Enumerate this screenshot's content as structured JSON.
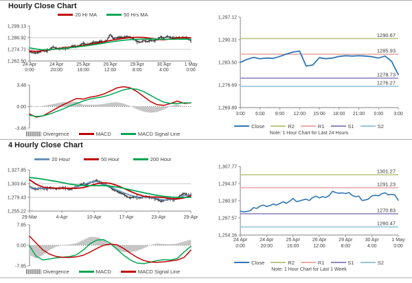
{
  "notes": {
    "hourly": "Note: 1 Hour Chart for Last 24 Hours",
    "weekly": "Note: 1 Hour Chart for Last 1 Week"
  },
  "chart_data": [
    {
      "id": "hourly-close",
      "type": "line",
      "title": "Hourly Close Chart",
      "ylim": [
        1262.5,
        1299.13
      ],
      "ylabel": "",
      "xlabel": "",
      "legend_position": "top",
      "y_ticks": [
        {
          "v": 1299.13,
          "label": "1,299.13"
        },
        {
          "v": 1286.92,
          "label": "1,286.92",
          "grid": true
        },
        {
          "v": 1274.71,
          "label": "1,274.71",
          "grid": true
        },
        {
          "v": 1262.5,
          "label": "1,262.50"
        }
      ],
      "x_ticks": [
        [
          "24 Apr",
          "0:00"
        ],
        [
          "24 Apr",
          "20:00"
        ],
        [
          "25 Apr",
          "16:00"
        ],
        [
          "26 Apr",
          "12:00"
        ],
        [
          "29 Apr",
          "8:00"
        ],
        [
          "30 Apr",
          "4:00"
        ],
        [
          "1 May",
          "0:00"
        ]
      ],
      "series": [
        {
          "name": "Close",
          "style": "hairline",
          "color": "#1a1a1a",
          "values": [
            1272.5,
            1271.2,
            1270.9,
            1272.0,
            1273.5,
            1272.8,
            1274.5,
            1277.3,
            1275.8,
            1275.2,
            1276.0,
            1275.5,
            1276.8,
            1278.5,
            1277.5,
            1279.0,
            1281.2,
            1279.5,
            1280.5,
            1282.5,
            1281.8,
            1283.0,
            1282.5,
            1284.0,
            1290.3,
            1286.0,
            1286.8,
            1287.5,
            1287.0,
            1288.2,
            1287.3,
            1285.5,
            1283.0,
            1282.2,
            1283.8,
            1282.8,
            1284.0,
            1283.5,
            1285.0,
            1287.8,
            1286.5,
            1288.3,
            1287.0,
            1286.5,
            1287.2,
            1286.8,
            1287.0,
            1286.5,
            1283.3
          ]
        },
        {
          "name": "20 Hr MA",
          "style": "line",
          "color": "#c00000",
          "width": 1.7,
          "values": [
            1273.0,
            1272.6,
            1273.2,
            1274.2,
            1275.3,
            1276.2,
            1277.0,
            1277.8,
            1278.8,
            1280.0,
            1281.2,
            1282.6,
            1284.0,
            1285.2,
            1286.2,
            1287.0,
            1287.4,
            1287.2,
            1286.2,
            1285.0,
            1284.8,
            1285.6,
            1286.6,
            1287.0,
            1286.8
          ]
        },
        {
          "name": "50 Hrs MA",
          "style": "line",
          "color": "#00a651",
          "width": 1.7,
          "values": [
            1276.3,
            1275.0,
            1274.2,
            1274.4,
            1274.9,
            1275.6,
            1276.4,
            1277.2,
            1278.0,
            1279.0,
            1280.0,
            1281.2,
            1282.4,
            1283.4,
            1284.2,
            1284.9,
            1285.3,
            1285.5,
            1285.5,
            1285.4,
            1285.3,
            1285.3,
            1285.4,
            1285.5,
            1285.3
          ]
        }
      ]
    },
    {
      "id": "hourly-macd",
      "type": "line",
      "ylim": [
        -3.48,
        3.48
      ],
      "legend_position": "bottom",
      "y_ticks": [
        {
          "v": 3.48,
          "label": "3.48"
        },
        {
          "v": 0,
          "label": "0.00",
          "zero": true
        },
        {
          "v": -3.48,
          "label": "-3.48"
        }
      ],
      "series": [
        {
          "name": "Divergence",
          "style": "bars",
          "color": "#8c8c8c",
          "values": [
            0.2,
            -0.1,
            0.1,
            0.3,
            0.5,
            0.7,
            0.7,
            0.8,
            0.3,
            0.3,
            0.3,
            0.4,
            0.6,
            0.7,
            0.5,
            0.1,
            -0.4,
            -0.8,
            -1.0,
            -0.9,
            -0.5,
            0.0,
            0.4,
            -0.1,
            0.1
          ]
        },
        {
          "name": "MACD",
          "style": "line",
          "color": "#c00000",
          "width": 1.5,
          "values": [
            -1.2,
            -1.7,
            -1.5,
            -0.9,
            -0.3,
            0.3,
            0.8,
            1.3,
            1.2,
            1.5,
            1.7,
            2.0,
            2.5,
            3.0,
            3.2,
            3.0,
            2.4,
            1.6,
            0.8,
            0.3,
            0.2,
            0.5,
            0.9,
            0.5,
            0.6
          ]
        },
        {
          "name": "MACD Signal Line",
          "style": "line",
          "color": "#00a651",
          "width": 1.5,
          "values": [
            -1.4,
            -1.6,
            -1.5,
            -1.2,
            -0.8,
            -0.4,
            0.1,
            0.5,
            0.9,
            1.2,
            1.4,
            1.6,
            1.9,
            2.3,
            2.7,
            2.9,
            2.8,
            2.4,
            1.8,
            1.2,
            0.7,
            0.5,
            0.5,
            0.6,
            0.6
          ]
        }
      ]
    },
    {
      "id": "one-hour-24h",
      "type": "line",
      "ylim": [
        1269.89,
        1297.12
      ],
      "legend_position": "bottom",
      "note": "Note: 1 Hour Chart for Last 24 Hours",
      "y_ticks": [
        {
          "v": 1297.12,
          "label": "1,297.12"
        },
        {
          "v": 1290.31,
          "label": "1,290.31"
        },
        {
          "v": 1283.5,
          "label": "1,283.50"
        },
        {
          "v": 1276.69,
          "label": "1,276.69"
        },
        {
          "v": 1269.89,
          "label": "1,269.89"
        }
      ],
      "x_ticks": [
        "3:00",
        "6:00",
        "9:00",
        "12:00",
        "15:00",
        "18:00",
        "21:00",
        "0:00",
        "3:00"
      ],
      "hlines": [
        {
          "name": "R2",
          "v": 1290.67,
          "label": "1290.67",
          "color": "#b9c783"
        },
        {
          "name": "R1",
          "v": 1285.93,
          "label": "1285.93",
          "color": "#e8aba5"
        },
        {
          "name": "S1",
          "v": 1278.73,
          "label": "1278.73",
          "color": "#9185bf"
        },
        {
          "name": "S2",
          "v": 1276.27,
          "label": "1276.27",
          "color": "#97c6de"
        }
      ],
      "series": [
        {
          "name": "Close",
          "style": "line",
          "color": "#2e74b5",
          "width": 1.8,
          "values": [
            1283.5,
            1284.4,
            1285.0,
            1284.6,
            1284.8,
            1284.7,
            1285.3,
            1286.0,
            1286.6,
            1286.9,
            1282.4,
            1282.7,
            1284.9,
            1284.6,
            1284.8,
            1285.3,
            1285.5,
            1285.4,
            1285.5,
            1285.4,
            1285.2,
            1284.8,
            1285.4,
            1283.8,
            1279.8
          ]
        }
      ]
    },
    {
      "id": "four-hourly-close",
      "type": "line",
      "title": "4 Hourly Close Chart",
      "ylim": [
        1255.22,
        1327.85
      ],
      "legend_position": "top",
      "y_ticks": [
        {
          "v": 1327.85,
          "label": "1,327.85"
        },
        {
          "v": 1303.64,
          "label": "1,303.64",
          "grid": true
        },
        {
          "v": 1279.43,
          "label": "1,279.43",
          "grid": true
        },
        {
          "v": 1255.22,
          "label": "1,255.22"
        }
      ],
      "x_ticks": [
        "29-Mar",
        "4-Apr",
        "10-Apr",
        "17-Apr",
        "23-Apr",
        "29-Apr"
      ],
      "series": [
        {
          "name": "Close",
          "style": "hairline",
          "color": "#1a1a1a",
          "values": [
            1298.5,
            1295.2,
            1293.8,
            1295.5,
            1294.8,
            1294.2,
            1296.2,
            1295.6,
            1294.2,
            1295.8,
            1296.4,
            1295.0,
            1293.2,
            1295.6,
            1298.0,
            1301.5,
            1303.2,
            1302.0,
            1305.5,
            1307.2,
            1309.3,
            1305.8,
            1302.4,
            1301.0,
            1297.4,
            1292.6,
            1290.2,
            1287.4,
            1285.2,
            1280.6,
            1278.4,
            1280.2,
            1279.6,
            1278.2,
            1280.4,
            1280.0,
            1279.0,
            1277.6,
            1276.2,
            1272.6,
            1273.8,
            1275.6,
            1276.4,
            1275.2,
            1278.2,
            1283.2,
            1286.4,
            1283.6,
            1284.2
          ]
        },
        {
          "name": "20 Hour",
          "style": "line",
          "color": "#6491bb",
          "width": 1.7,
          "values": [
            1297.5,
            1295.0,
            1295.2,
            1295.5,
            1295.3,
            1295.6,
            1294.8,
            1297.5,
            1302.0,
            1306.0,
            1307.5,
            1303.5,
            1298.5,
            1292.5,
            1287.5,
            1283.0,
            1280.0,
            1279.8,
            1279.5,
            1277.5,
            1274.5,
            1275.5,
            1277.0,
            1283.0,
            1284.0
          ]
        },
        {
          "name": "50 Hour",
          "style": "line",
          "color": "#c00000",
          "width": 1.8,
          "values": [
            1310.5,
            1302.5,
            1297.5,
            1296.2,
            1295.6,
            1295.5,
            1295.7,
            1295.3,
            1296.5,
            1300.0,
            1303.5,
            1305.3,
            1304.2,
            1300.5,
            1295.5,
            1290.0,
            1285.0,
            1281.5,
            1280.2,
            1280.0,
            1279.0,
            1277.2,
            1276.6,
            1278.5,
            1282.5
          ]
        },
        {
          "name": "200 Hour",
          "style": "line",
          "color": "#00a651",
          "width": 1.8,
          "values": [
            1314.5,
            1313.2,
            1311.5,
            1309.5,
            1307.5,
            1305.2,
            1302.8,
            1301.2,
            1300.2,
            1300.0,
            1300.2,
            1300.1,
            1299.2,
            1297.6,
            1295.4,
            1292.8,
            1290.2,
            1287.6,
            1285.2,
            1283.0,
            1281.2,
            1280.0,
            1279.4,
            1279.3,
            1279.5
          ]
        }
      ]
    },
    {
      "id": "four-hourly-macd",
      "type": "line",
      "ylim": [
        -7.85,
        7.85
      ],
      "legend_position": "bottom",
      "y_ticks": [
        {
          "v": 7.85,
          "label": "7.85"
        },
        {
          "v": 0,
          "label": "0.00",
          "zero": true
        },
        {
          "v": -7.85,
          "label": "-7.85"
        }
      ],
      "series": [
        {
          "name": "Divergence",
          "style": "bars",
          "color": "#8c8c8c",
          "values": [
            -3.7,
            -5.0,
            -3.8,
            -1.8,
            -0.5,
            0.1,
            0.3,
            0.8,
            2.0,
            3.2,
            3.2,
            2.2,
            0.3,
            -1.7,
            -2.6,
            -2.6,
            -2.2,
            -1.2,
            0.0,
            0.7,
            0.5,
            0.4,
            0.6,
            1.4,
            2.1
          ]
        },
        {
          "name": "MACD",
          "style": "line",
          "color": "#00a651",
          "width": 1.5,
          "values": [
            -0.2,
            -4.2,
            -5.6,
            -5.2,
            -4.8,
            -4.5,
            -4.3,
            -3.6,
            -1.8,
            0.6,
            2.0,
            2.2,
            0.8,
            -1.5,
            -3.8,
            -5.6,
            -6.8,
            -7.0,
            -6.4,
            -5.8,
            -5.5,
            -5.6,
            -5.0,
            -2.5,
            -0.4
          ]
        },
        {
          "name": "MACD Signal Line",
          "style": "line",
          "color": "#c00000",
          "width": 1.5,
          "values": [
            3.5,
            0.8,
            -1.8,
            -3.4,
            -4.3,
            -4.6,
            -4.6,
            -4.4,
            -3.8,
            -2.6,
            -1.2,
            0.0,
            0.5,
            0.2,
            -1.2,
            -3.0,
            -4.6,
            -5.8,
            -6.4,
            -6.5,
            -6.3,
            -6.0,
            -5.6,
            -4.6,
            -1.8
          ]
        }
      ]
    },
    {
      "id": "one-hour-1week",
      "type": "line",
      "ylim": [
        1254.16,
        1307.77
      ],
      "legend_position": "bottom",
      "note": "Note: 1 Hour Chart for Last 1 Week",
      "y_ticks": [
        {
          "v": 1307.77,
          "label": "1,307.77"
        },
        {
          "v": 1294.37,
          "label": "1,294.37"
        },
        {
          "v": 1280.97,
          "label": "1,280.97"
        },
        {
          "v": 1267.57,
          "label": "1,267.57"
        },
        {
          "v": 1254.16,
          "label": "1,254.16"
        }
      ],
      "x_ticks": [
        [
          "24 Apr",
          "0:00"
        ],
        [
          "24 Apr",
          "20:00"
        ],
        [
          "25 Apr",
          "16:00"
        ],
        [
          "26 Apr",
          "12:00"
        ],
        [
          "29 Apr",
          "8:00"
        ],
        [
          "30 Apr",
          "4:00"
        ],
        [
          "1 May",
          "0:00"
        ]
      ],
      "hlines": [
        {
          "name": "R2",
          "v": 1301.27,
          "label": "1301.27",
          "color": "#b9c783"
        },
        {
          "name": "R1",
          "v": 1291.23,
          "label": "1291.23",
          "color": "#e8aba5"
        },
        {
          "name": "S1",
          "v": 1270.83,
          "label": "1270.83",
          "color": "#9185bf"
        },
        {
          "name": "S2",
          "v": 1260.47,
          "label": "1260.47",
          "color": "#97c6de"
        }
      ],
      "series": [
        {
          "name": "Close",
          "style": "line",
          "color": "#2e74b5",
          "width": 1.6,
          "values": [
            1272.8,
            1272.3,
            1272.6,
            1273.2,
            1275.6,
            1275.0,
            1276.8,
            1277.6,
            1276.4,
            1277.2,
            1278.4,
            1277.6,
            1278.8,
            1280.2,
            1279.0,
            1280.6,
            1282.8,
            1280.4,
            1280.8,
            1281.6,
            1282.2,
            1281.2,
            1283.6,
            1284.6,
            1283.2,
            1284.2,
            1283.6,
            1285.0,
            1288.4,
            1287.4,
            1286.8,
            1287.2,
            1286.6,
            1287.4,
            1285.2,
            1284.2,
            1284.6,
            1281.2,
            1281.6,
            1282.4,
            1284.8,
            1285.2,
            1284.8,
            1286.6,
            1287.2,
            1285.6,
            1286.0,
            1285.4,
            1281.4
          ]
        }
      ]
    }
  ]
}
